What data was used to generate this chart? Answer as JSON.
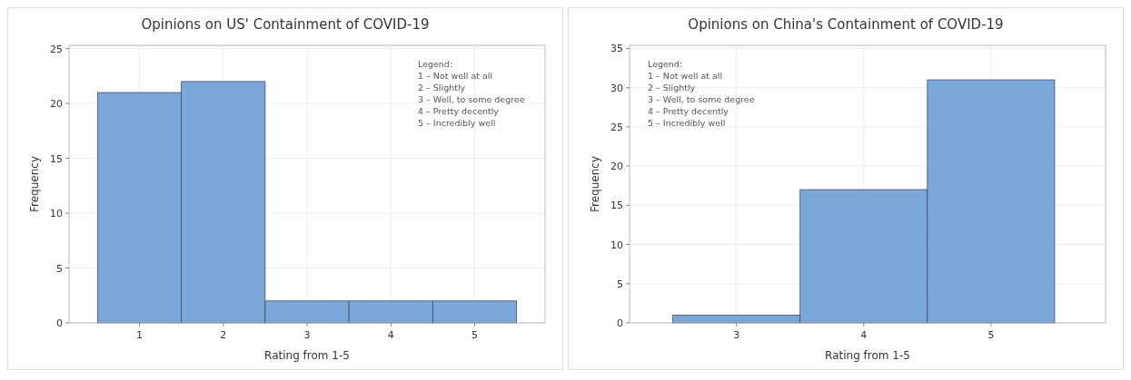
{
  "chart_data": [
    {
      "type": "histogram",
      "title": "Opinions on US' Containment of COVID-19",
      "xlabel": "Rating from 1-5",
      "ylabel": "Frequency",
      "bins": [
        0.5,
        1.5,
        2.5,
        3.5,
        4.5,
        5.5
      ],
      "values": [
        21,
        22,
        2,
        2,
        2
      ],
      "color": "#7ba6d8",
      "xlim": [
        0.16,
        5.84
      ],
      "xticks": [
        1,
        2,
        3,
        4,
        5
      ],
      "ylim": [
        0,
        25.3
      ],
      "yticks": [
        0,
        5,
        10,
        15,
        20,
        25
      ],
      "grid": true,
      "annotations": [
        "Legend:",
        "1 – Not well at all",
        "2 – Slightly",
        "3 – Well, to some degree",
        "4 – Pretty decently",
        "5 – Incredibly well"
      ]
    },
    {
      "type": "histogram",
      "title": "Opinions on China's Containment of COVID-19",
      "xlabel": "Rating from 1-5",
      "ylabel": "Frequency",
      "bins": [
        2.5,
        3.5,
        4.5,
        5.5
      ],
      "values": [
        1,
        17,
        31
      ],
      "color": "#7ba6d8",
      "xlim": [
        2.16,
        5.9
      ],
      "xticks": [
        3,
        4,
        5
      ],
      "ylim": [
        0,
        35.4
      ],
      "yticks": [
        0,
        5,
        10,
        15,
        20,
        25,
        30,
        35
      ],
      "grid": true,
      "annotations": [
        "Legend:",
        "1 – Not well at all",
        "2 – Slightly",
        "3 – Well, to some degree",
        "4 – Pretty decently",
        "5 – Incredibly well"
      ]
    }
  ]
}
